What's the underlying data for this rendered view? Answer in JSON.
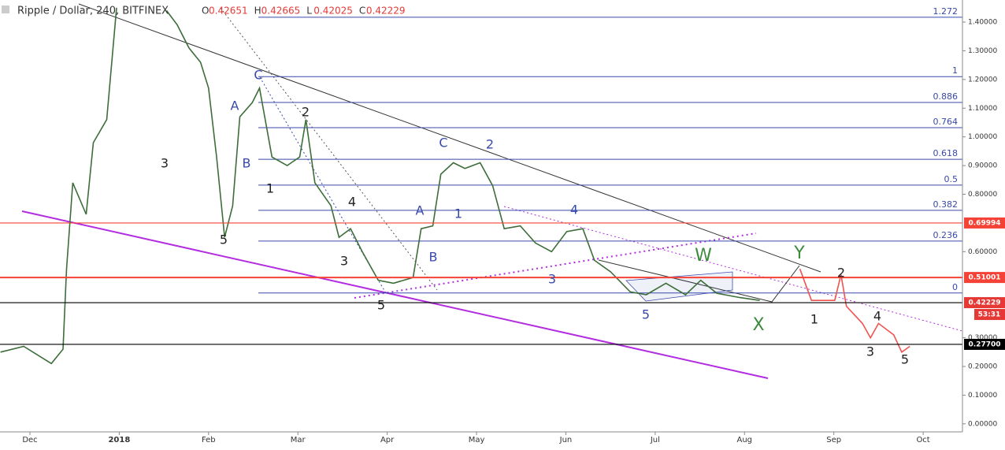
{
  "header": {
    "title": "Ripple / Dollar, 240, BITFINEX",
    "ohlc": [
      {
        "label": "O",
        "value": 0.42651
      },
      {
        "label": "H",
        "value": 0.42665
      },
      {
        "label": "L",
        "value": 0.42025
      },
      {
        "label": "C",
        "value": 0.42229
      }
    ]
  },
  "chart_data": {
    "type": "line",
    "xlim": [
      -0.335,
      10.44
    ],
    "xticks": [
      {
        "value": 0,
        "label": "Dec"
      },
      {
        "value": 1,
        "label": "2018"
      },
      {
        "value": 2,
        "label": "Feb"
      },
      {
        "value": 3,
        "label": "Mar"
      },
      {
        "value": 4,
        "label": "Apr"
      },
      {
        "value": 5,
        "label": "May"
      },
      {
        "value": 6,
        "label": "Jun"
      },
      {
        "value": 7,
        "label": "Jul"
      },
      {
        "value": 8,
        "label": "Aug"
      },
      {
        "value": 9,
        "label": "Sep"
      },
      {
        "value": 10,
        "label": "Oct"
      }
    ],
    "ylim": [
      -0.028,
      1.477
    ],
    "yticks": [
      {
        "value": 1.4,
        "label": "1.40000"
      },
      {
        "value": 1.3,
        "label": "1.30000"
      },
      {
        "value": 1.2,
        "label": "1.20000"
      },
      {
        "value": 1.1,
        "label": "1.10000"
      },
      {
        "value": 1,
        "label": "1.00000"
      },
      {
        "value": 0.9,
        "label": "0.90000"
      },
      {
        "value": 0.8,
        "label": "0.80000"
      },
      {
        "value": 0.6,
        "label": "0.60000"
      },
      {
        "value": 0.3,
        "label": "0.30000"
      },
      {
        "value": 0.2,
        "label": "0.20000"
      },
      {
        "value": 0.1,
        "label": "0.10000"
      },
      {
        "value": 0,
        "label": "0.00000"
      }
    ],
    "series": [
      {
        "color": "#3d6e3a",
        "x": [
          -0.33,
          -0.07,
          0.24,
          0.37,
          0.41,
          0.48,
          0.63,
          0.71,
          0.86,
          0.97,
          1.25,
          1.53,
          1.65,
          1.78,
          1.91,
          2.0,
          2.09,
          2.18,
          2.27,
          2.35,
          2.49,
          2.57,
          2.71,
          2.88,
          3.02,
          3.09,
          3.19,
          3.37,
          3.46,
          3.59,
          3.72,
          3.9,
          4.07,
          4.29,
          4.38,
          4.51,
          4.6,
          4.74,
          4.87,
          5.04,
          5.18,
          5.31,
          5.49,
          5.66,
          5.84,
          6.01,
          6.19,
          6.32,
          6.5,
          6.72,
          6.9,
          7.12,
          7.34,
          7.51,
          7.69,
          7.95,
          8.17
        ],
        "values": [
          0.25,
          0.27,
          0.21,
          0.26,
          0.54,
          0.84,
          0.73,
          0.98,
          1.06,
          1.45,
          null,
          1.44,
          1.39,
          1.31,
          1.26,
          1.17,
          0.93,
          0.65,
          0.76,
          1.07,
          1.12,
          1.17,
          0.93,
          0.9,
          0.93,
          1.06,
          0.84,
          0.76,
          0.65,
          0.68,
          0.6,
          0.5,
          0.49,
          0.51,
          0.68,
          0.69,
          0.87,
          0.91,
          0.89,
          0.91,
          0.83,
          0.68,
          0.69,
          0.63,
          0.6,
          0.67,
          0.68,
          0.57,
          0.53,
          0.46,
          0.45,
          0.49,
          0.45,
          0.5,
          0.455,
          0.44,
          0.43
        ]
      },
      {
        "color": "#ef5350",
        "x": [
          8.62,
          8.75,
          9.01,
          9.08,
          9.14,
          9.32,
          9.41,
          9.5,
          9.67,
          9.76,
          9.85
        ],
        "values": [
          0.54,
          0.43,
          0.43,
          0.52,
          0.41,
          0.35,
          0.3,
          0.35,
          0.31,
          0.25,
          0.27
        ]
      }
    ],
    "fib_levels": [
      {
        "ratio": 1.272,
        "price": 1.417
      },
      {
        "ratio": 1,
        "price": 1.21
      },
      {
        "ratio": 0.886,
        "price": 1.12
      },
      {
        "ratio": 0.764,
        "price": 1.032
      },
      {
        "ratio": 0.618,
        "price": 0.922
      },
      {
        "ratio": 0.5,
        "price": 0.832
      },
      {
        "ratio": 0.382,
        "price": 0.744
      },
      {
        "ratio": 0.236,
        "price": 0.637
      },
      {
        "ratio": 0,
        "price": 0.456
      }
    ],
    "price_lines": [
      {
        "value": 0.69994,
        "color": "#f44336"
      },
      {
        "value": 0.51001,
        "color": "#f44336"
      },
      {
        "value": 0.42229,
        "color": "#000000"
      },
      {
        "value": 0.277,
        "label": "0.27700",
        "color": "#000000"
      }
    ],
    "countdown": "53:31",
    "annotations": [
      {
        "text": "3",
        "color": "#222"
      },
      {
        "text": "5",
        "color": "#222"
      },
      {
        "text": "A",
        "color": "#3949ab"
      },
      {
        "text": "B",
        "color": "#3949ab"
      },
      {
        "text": "C",
        "color": "#3949ab"
      },
      {
        "text": "1",
        "color": "#222"
      },
      {
        "text": "2",
        "color": "#222"
      },
      {
        "text": "3",
        "color": "#222"
      },
      {
        "text": "4",
        "color": "#222"
      },
      {
        "text": "5",
        "color": "#222"
      },
      {
        "text": "A",
        "color": "#3949ab"
      },
      {
        "text": "B",
        "color": "#3949ab"
      },
      {
        "text": "C",
        "color": "#3949ab"
      },
      {
        "text": "1",
        "color": "#3949ab"
      },
      {
        "text": "2",
        "color": "#3949ab"
      },
      {
        "text": "4",
        "color": "#3949ab"
      },
      {
        "text": "3",
        "color": "#3949ab"
      },
      {
        "text": "5",
        "color": "#3949ab"
      },
      {
        "text": "W",
        "color": "#3d8b3d"
      },
      {
        "text": "X",
        "color": "#3d8b3d"
      },
      {
        "text": "Y",
        "color": "#3d8b3d"
      },
      {
        "text": "1",
        "color": "#222"
      },
      {
        "text": "2",
        "color": "#222"
      },
      {
        "text": "3",
        "color": "#222"
      },
      {
        "text": "4",
        "color": "#222"
      },
      {
        "text": "5",
        "color": "#222"
      }
    ]
  }
}
